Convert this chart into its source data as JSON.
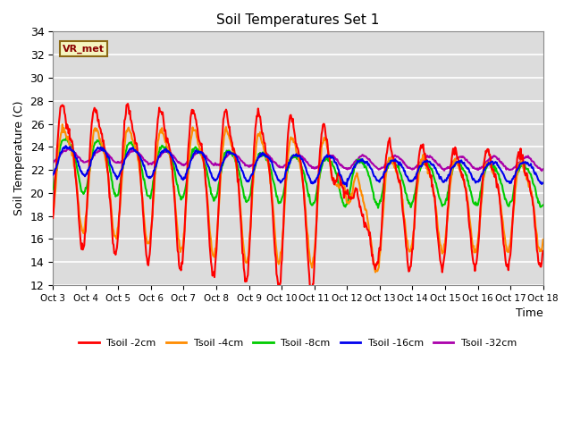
{
  "title": "Soil Temperatures Set 1",
  "xlabel": "Time",
  "ylabel": "Soil Temperature (C)",
  "ylim": [
    12,
    34
  ],
  "xlim": [
    0,
    15
  ],
  "x_tick_labels": [
    "Oct 3",
    "Oct 4",
    "Oct 5",
    "Oct 6",
    "Oct 7",
    "Oct 8",
    "Oct 9",
    "Oct 10",
    "Oct 11",
    "Oct 12",
    "Oct 13",
    "Oct 14",
    "Oct 15",
    "Oct 16",
    "Oct 17",
    "Oct 18"
  ],
  "background_color": "#dcdcdc",
  "series_colors": [
    "#ff0000",
    "#ff8c00",
    "#00cc00",
    "#0000ee",
    "#aa00aa"
  ],
  "series_labels": [
    "Tsoil -2cm",
    "Tsoil -4cm",
    "Tsoil -8cm",
    "Tsoil -16cm",
    "Tsoil -32cm"
  ],
  "annotation_text": "VR_met",
  "grid_color": "#ffffff",
  "linewidth": 1.5
}
